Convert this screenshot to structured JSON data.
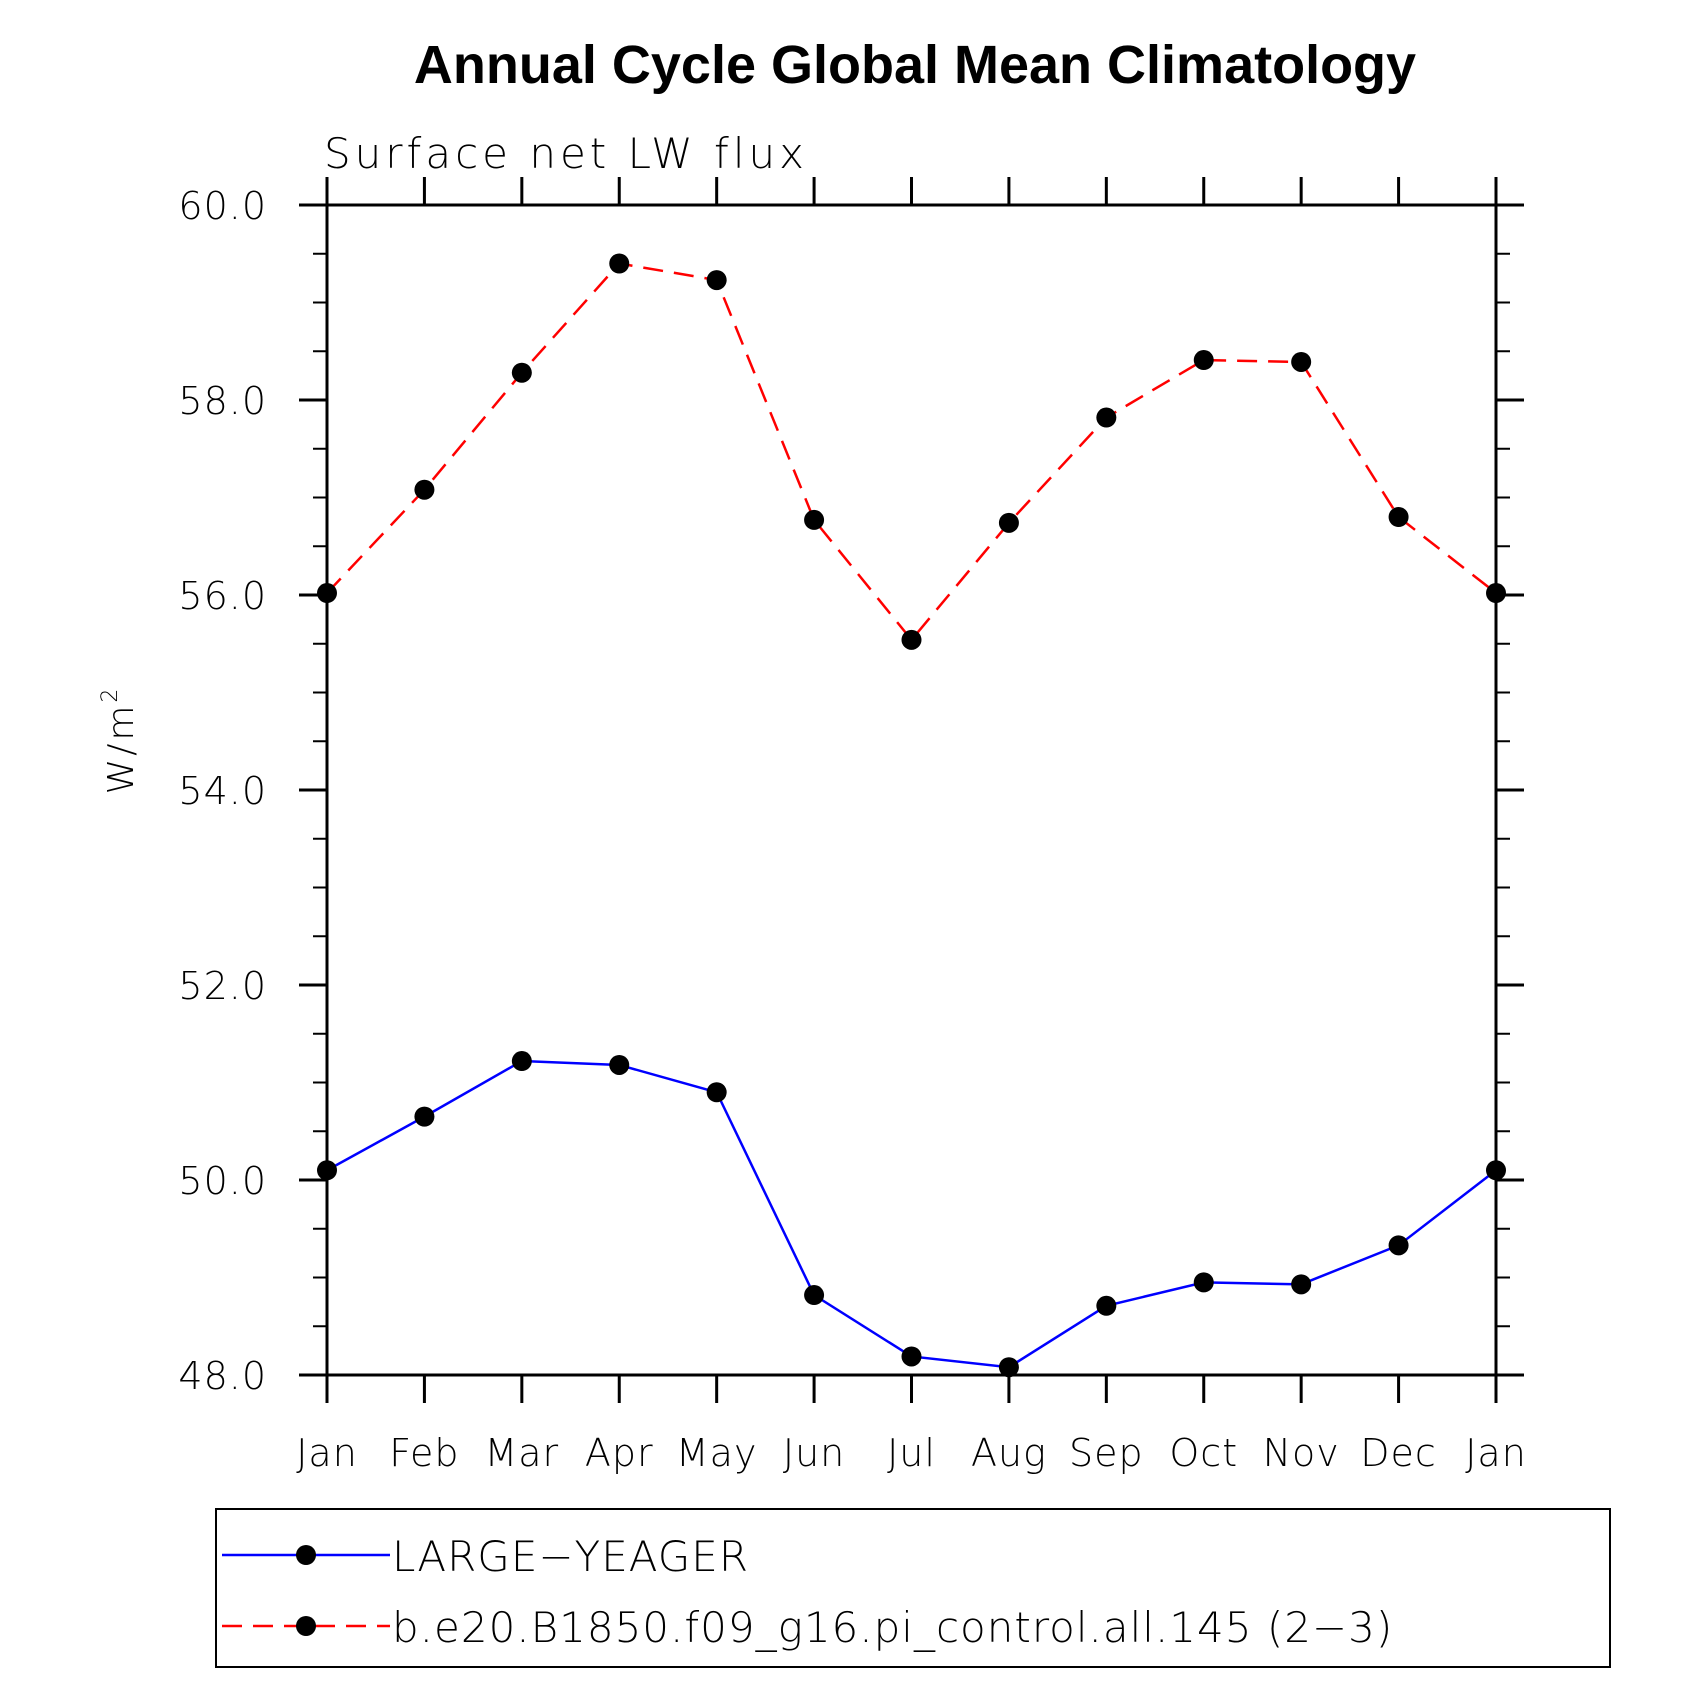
{
  "chart_data": {
    "type": "line",
    "title": "Annual Cycle Global Mean Climatology",
    "subtitle": "Surface net LW flux",
    "ylabel": "W/m",
    "ylabel_superscript": "2",
    "xlabel": "",
    "ylim": [
      48.0,
      60.0
    ],
    "yticks": [
      "48.0",
      "50.0",
      "52.0",
      "54.0",
      "56.0",
      "58.0",
      "60.0"
    ],
    "categories": [
      "Jan",
      "Feb",
      "Mar",
      "Apr",
      "May",
      "Jun",
      "Jul",
      "Aug",
      "Sep",
      "Oct",
      "Nov",
      "Dec",
      "Jan"
    ],
    "series": [
      {
        "name": "LARGE−YEAGER",
        "color": "#0000ff",
        "dash": "solid",
        "values": [
          50.1,
          50.65,
          51.22,
          51.18,
          50.9,
          48.82,
          48.19,
          48.08,
          48.71,
          48.95,
          48.93,
          49.33,
          50.1
        ]
      },
      {
        "name": "b.e20.B1850.f09_g16.pi_control.all.145 (2−3)",
        "color": "#ff0000",
        "dash": "dashed",
        "values": [
          56.02,
          57.08,
          58.28,
          59.4,
          59.23,
          56.77,
          55.54,
          56.74,
          57.82,
          58.41,
          58.39,
          56.8,
          56.02
        ]
      }
    ],
    "legend_position": "bottom"
  }
}
